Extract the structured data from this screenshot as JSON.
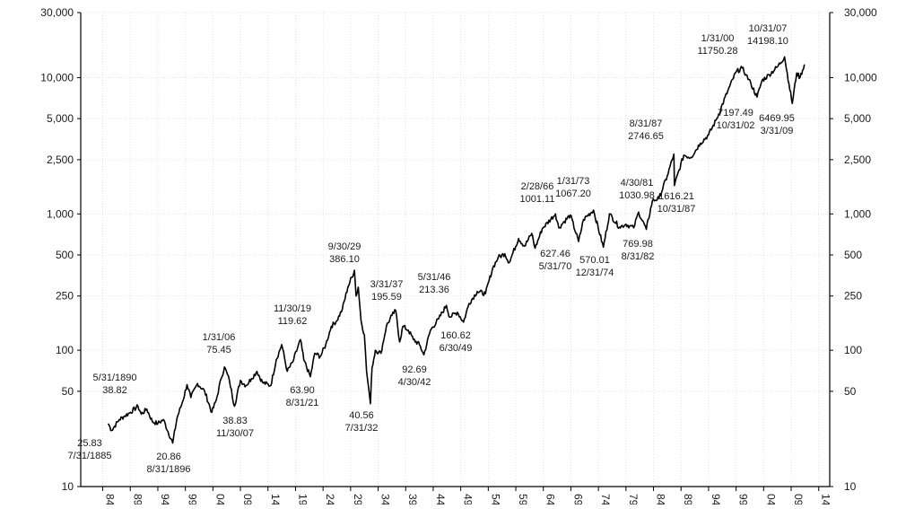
{
  "chart_data": {
    "type": "line",
    "title": "",
    "xlabel": "",
    "ylabel": "",
    "yscale": "log",
    "xlim": [
      1880,
      2016
    ],
    "ylim": [
      10,
      30000
    ],
    "grid": true,
    "y_ticks": [
      10,
      50,
      100,
      250,
      500,
      1000,
      2500,
      5000,
      10000,
      30000
    ],
    "y_tick_labels": [
      "10",
      "50",
      "100",
      "250",
      "500",
      "1,000",
      "2,500",
      "5,000",
      "10,000",
      "30,000"
    ],
    "x_ticks": [
      1884,
      1889,
      1894,
      1899,
      1904,
      1909,
      1914,
      1919,
      1924,
      1929,
      1934,
      1939,
      1944,
      1949,
      1954,
      1959,
      1964,
      1969,
      1974,
      1979,
      1984,
      1989,
      1994,
      1999,
      2004,
      2009,
      2014
    ],
    "x_tick_labels": [
      "84",
      "89",
      "94",
      "99",
      "04",
      "09",
      "14",
      "19",
      "24",
      "29",
      "34",
      "39",
      "44",
      "49",
      "54",
      "59",
      "64",
      "69",
      "74",
      "79",
      "84",
      "89",
      "94",
      "99",
      "04",
      "09",
      "14"
    ],
    "series": [
      {
        "values": [
          [
            1885.0,
            29
          ],
          [
            1885.6,
            25.83
          ],
          [
            1887,
            31
          ],
          [
            1888,
            33
          ],
          [
            1889,
            35
          ],
          [
            1890.4,
            38.82
          ],
          [
            1891,
            34
          ],
          [
            1892,
            37
          ],
          [
            1893,
            30
          ],
          [
            1894,
            29
          ],
          [
            1895,
            31
          ],
          [
            1896.7,
            20.86
          ],
          [
            1897.5,
            32
          ],
          [
            1898.5,
            42
          ],
          [
            1899.3,
            56
          ],
          [
            1900,
            45
          ],
          [
            1901.2,
            57
          ],
          [
            1902.5,
            50
          ],
          [
            1903.8,
            35
          ],
          [
            1904.6,
            43
          ],
          [
            1905.5,
            62
          ],
          [
            1906.1,
            75.45
          ],
          [
            1907,
            60
          ],
          [
            1907.9,
            38.83
          ],
          [
            1909,
            60
          ],
          [
            1910,
            55
          ],
          [
            1911,
            62
          ],
          [
            1912,
            70
          ],
          [
            1913,
            58
          ],
          [
            1914.5,
            55
          ],
          [
            1915.5,
            85
          ],
          [
            1916.5,
            110
          ],
          [
            1917.5,
            70
          ],
          [
            1918.5,
            82
          ],
          [
            1919.9,
            119.62
          ],
          [
            1920.5,
            85
          ],
          [
            1921.7,
            63.9
          ],
          [
            1922.5,
            95
          ],
          [
            1923.5,
            90
          ],
          [
            1924.5,
            110
          ],
          [
            1925.5,
            150
          ],
          [
            1926.5,
            165
          ],
          [
            1927.5,
            200
          ],
          [
            1928.5,
            290
          ],
          [
            1929.7,
            386.1
          ],
          [
            1930,
            250
          ],
          [
            1930.4,
            290
          ],
          [
            1930.9,
            165
          ],
          [
            1931.5,
            130
          ],
          [
            1931.9,
            70
          ],
          [
            1932.3,
            52
          ],
          [
            1932.6,
            40.56
          ],
          [
            1932.9,
            75
          ],
          [
            1933.5,
            100
          ],
          [
            1934.5,
            95
          ],
          [
            1935.5,
            150
          ],
          [
            1936.5,
            180
          ],
          [
            1937.2,
            195.59
          ],
          [
            1937.9,
            115
          ],
          [
            1938.5,
            150
          ],
          [
            1939.5,
            140
          ],
          [
            1940.4,
            120
          ],
          [
            1941.5,
            110
          ],
          [
            1942.3,
            92.69
          ],
          [
            1943.5,
            140
          ],
          [
            1945,
            170
          ],
          [
            1946.4,
            213.36
          ],
          [
            1947,
            175
          ],
          [
            1948.4,
            190
          ],
          [
            1949.5,
            160.62
          ],
          [
            1950.5,
            220
          ],
          [
            1952,
            270
          ],
          [
            1953.5,
            260
          ],
          [
            1954.8,
            400
          ],
          [
            1955.8,
            480
          ],
          [
            1957,
            510
          ],
          [
            1957.8,
            440
          ],
          [
            1959.5,
            660
          ],
          [
            1960.6,
            580
          ],
          [
            1961.9,
            720
          ],
          [
            1962.5,
            560
          ],
          [
            1963.8,
            780
          ],
          [
            1966.2,
            1001.11
          ],
          [
            1966.8,
            790
          ],
          [
            1967.8,
            880
          ],
          [
            1968.9,
            980
          ],
          [
            1970.4,
            627.46
          ],
          [
            1971.3,
            910
          ],
          [
            1973.1,
            1067.2
          ],
          [
            1974.9,
            570.01
          ],
          [
            1976,
            1000
          ],
          [
            1977.8,
            800
          ],
          [
            1979,
            840
          ],
          [
            1980.4,
            790
          ],
          [
            1981.3,
            1030.98
          ],
          [
            1982.7,
            769.98
          ],
          [
            1983.8,
            1250
          ],
          [
            1985,
            1300
          ],
          [
            1986.5,
            1900
          ],
          [
            1987.7,
            2746.65
          ],
          [
            1987.8,
            1616.21
          ],
          [
            1989.5,
            2700
          ],
          [
            1990.8,
            2600
          ],
          [
            1992.5,
            3300
          ],
          [
            1994,
            3800
          ],
          [
            1995.5,
            5000
          ],
          [
            1997.5,
            8000
          ],
          [
            1999,
            11000
          ],
          [
            2000.1,
            11750.28
          ],
          [
            2000.8,
            10500
          ],
          [
            2001.7,
            9000
          ],
          [
            2002.8,
            7197.49
          ],
          [
            2003.7,
            9500
          ],
          [
            2005,
            10500
          ],
          [
            2006.5,
            12000
          ],
          [
            2007.8,
            14198.1
          ],
          [
            2008.6,
            9000
          ],
          [
            2009.2,
            6469.95
          ],
          [
            2010,
            10800
          ],
          [
            2010.6,
            10000
          ],
          [
            2011.4,
            12500
          ]
        ]
      }
    ],
    "annotations": [
      {
        "date": "7/31/1885",
        "value": "25.83"
      },
      {
        "date": "5/31/1890",
        "value": "38.82"
      },
      {
        "date": "8/31/1896",
        "value": "20.86"
      },
      {
        "date": "1/31/06",
        "value": "75.45"
      },
      {
        "date": "11/30/07",
        "value": "38.83"
      },
      {
        "date": "11/30/19",
        "value": "119.62"
      },
      {
        "date": "8/31/21",
        "value": "63.90"
      },
      {
        "date": "9/30/29",
        "value": "386.10"
      },
      {
        "date": "7/31/32",
        "value": "40.56"
      },
      {
        "date": "3/31/37",
        "value": "195.59"
      },
      {
        "date": "4/30/42",
        "value": "92.69"
      },
      {
        "date": "5/31/46",
        "value": "213.36"
      },
      {
        "date": "6/30/49",
        "value": "160.62"
      },
      {
        "date": "2/28/66",
        "value": "1001.11"
      },
      {
        "date": "5/31/70",
        "value": "627.46"
      },
      {
        "date": "1/31/73",
        "value": "1067.20"
      },
      {
        "date": "12/31/74",
        "value": "570.01"
      },
      {
        "date": "4/30/81",
        "value": "1030.98"
      },
      {
        "date": "8/31/82",
        "value": "769.98"
      },
      {
        "date": "8/31/87",
        "value": "2746.65"
      },
      {
        "date": "10/31/87",
        "value": "1616.21"
      },
      {
        "date": "1/31/00",
        "value": "11750.28"
      },
      {
        "date": "10/31/02",
        "value": "7197.49"
      },
      {
        "date": "10/31/07",
        "value": "14198.10"
      },
      {
        "date": "3/31/09",
        "value": "6469.95"
      }
    ]
  }
}
